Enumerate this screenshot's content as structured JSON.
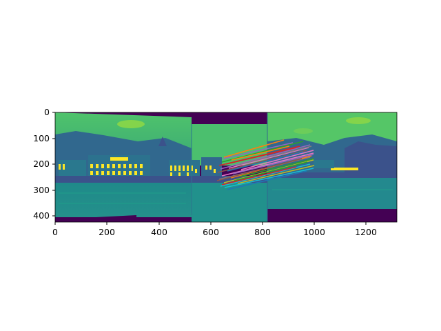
{
  "figure": {
    "image_description": "panorama stitching visualization: viridis-colored lakeside town with feature-match lines",
    "x_ticks": [
      "0",
      "200",
      "400",
      "600",
      "800",
      "1000",
      "1200"
    ],
    "y_ticks": [
      "0",
      "100",
      "200",
      "300",
      "400"
    ],
    "xlim": [
      0,
      1320
    ],
    "ylim": [
      422,
      0
    ]
  },
  "colors": {
    "background_purple": "#440154",
    "sky": "#3fbc73",
    "sky_light": "#84d44b",
    "water": "#21918c",
    "water_dark": "#2a788e",
    "buildings": "#31688e",
    "highlight": "#fde725",
    "dark_band": "#3b528b"
  }
}
